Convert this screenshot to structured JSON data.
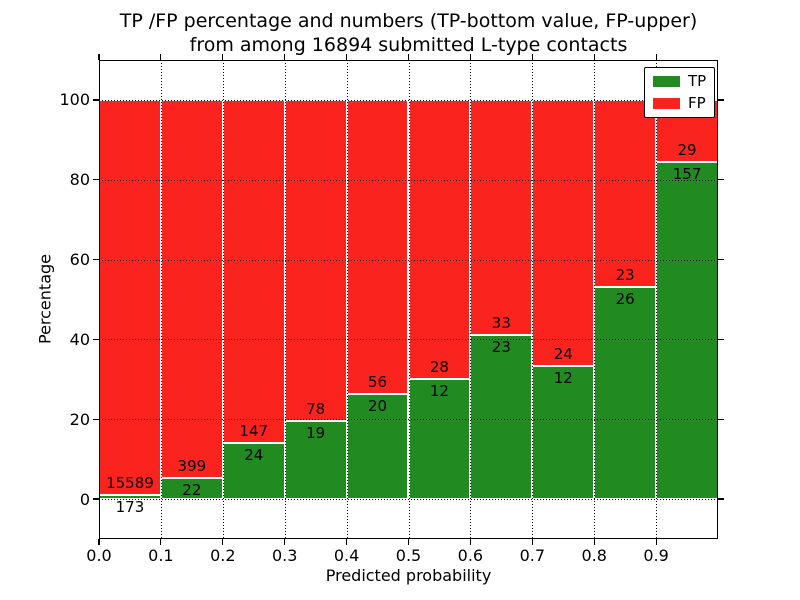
{
  "title": {
    "line1": "TP /FP percentage and numbers (TP-bottom value, FP-upper)",
    "line2": "from among 16894 submitted L-type contacts"
  },
  "axes": {
    "xlabel": "Predicted probability",
    "ylabel": "Percentage",
    "x_ticks": [
      "0.0",
      "0.1",
      "0.2",
      "0.3",
      "0.4",
      "0.5",
      "0.6",
      "0.7",
      "0.8",
      "0.9"
    ],
    "y_ticks": [
      "0",
      "20",
      "40",
      "60",
      "80",
      "100"
    ]
  },
  "legend": {
    "entries": [
      {
        "label": "TP",
        "color": "#218a21"
      },
      {
        "label": "FP",
        "color": "#fa231e"
      }
    ]
  },
  "chart_data": {
    "type": "bar",
    "stacked": true,
    "title": "TP /FP percentage and numbers (TP-bottom value, FP-upper) from among 16894 submitted L-type contacts",
    "xlabel": "Predicted probability",
    "ylabel": "Percentage",
    "xlim": [
      0.0,
      1.0
    ],
    "ylim": [
      -10,
      110
    ],
    "grid": "dotted",
    "legend_position": "upper right",
    "total_contacts": 16894,
    "categories": [
      "0.0-0.1",
      "0.1-0.2",
      "0.2-0.3",
      "0.3-0.4",
      "0.4-0.5",
      "0.5-0.6",
      "0.6-0.7",
      "0.7-0.8",
      "0.8-0.9",
      "0.9-1.0"
    ],
    "x_tick_values": [
      0.0,
      0.1,
      0.2,
      0.3,
      0.4,
      0.5,
      0.6,
      0.7,
      0.8,
      0.9
    ],
    "y_tick_values": [
      0,
      20,
      40,
      60,
      80,
      100
    ],
    "series": [
      {
        "name": "TP",
        "color": "#218a21",
        "counts": [
          173,
          22,
          24,
          19,
          20,
          12,
          23,
          12,
          26,
          157
        ],
        "pct": [
          1.1,
          5.23,
          14.04,
          19.59,
          26.32,
          30.0,
          41.07,
          33.33,
          53.06,
          84.41
        ]
      },
      {
        "name": "FP",
        "color": "#fa231e",
        "counts": [
          15589,
          399,
          147,
          78,
          56,
          28,
          33,
          24,
          23,
          29
        ],
        "pct": [
          98.9,
          94.77,
          85.96,
          80.41,
          73.68,
          70.0,
          58.93,
          66.67,
          46.94,
          15.59
        ]
      }
    ]
  }
}
